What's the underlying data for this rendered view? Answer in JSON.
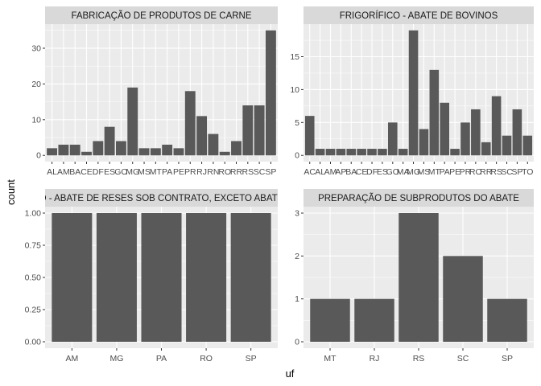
{
  "chart_data": {
    "type": "bar",
    "xlabel": "uf",
    "ylabel": "count",
    "colors": {
      "bar": "#595959",
      "panel": "#ebebeb",
      "strip": "#d9d9d9",
      "grid": "#ffffff"
    },
    "panels": [
      {
        "title": "FABRICAÇÃO DE PRODUTOS DE CARNE",
        "categories": [
          "AL",
          "AM",
          "BA",
          "CE",
          "DF",
          "ES",
          "GO",
          "MG",
          "MS",
          "MT",
          "PA",
          "PE",
          "PR",
          "RJ",
          "RN",
          "RO",
          "RR",
          "RS",
          "SC",
          "SP"
        ],
        "values": [
          2,
          3,
          3,
          1,
          4,
          8,
          4,
          19,
          2,
          2,
          3,
          2,
          18,
          11,
          6,
          1,
          4,
          14,
          14,
          35
        ],
        "ylim": [
          -1.75,
          36.75
        ],
        "yticks": [
          0,
          10,
          20,
          30
        ],
        "ytick_labels": [
          "0",
          "10",
          "20",
          "30"
        ]
      },
      {
        "title": "FRIGORÍFICO - ABATE DE BOVINOS",
        "categories": [
          "AC",
          "AL",
          "AM",
          "AP",
          "BA",
          "CE",
          "DF",
          "ES",
          "GO",
          "MA",
          "MG",
          "MS",
          "MT",
          "PA",
          "PE",
          "PR",
          "RO",
          "RR",
          "RS",
          "SC",
          "SP",
          "TO"
        ],
        "values": [
          6,
          1,
          1,
          1,
          1,
          1,
          1,
          1,
          5,
          1,
          19,
          4,
          13,
          8,
          1,
          5,
          7,
          2,
          9,
          3,
          7,
          3
        ],
        "ylim": [
          -0.95,
          19.95
        ],
        "yticks": [
          0,
          5,
          10,
          15
        ],
        "ytick_labels": [
          "0",
          "5",
          "10",
          "15"
        ]
      },
      {
        "title": "FRIGORÍFICO - ABATE DE RESES SOB CONTRATO, EXCETO ABATE DE SUÍNOS",
        "categories": [
          "AM",
          "MG",
          "PA",
          "RO",
          "SP"
        ],
        "values": [
          1,
          1,
          1,
          1,
          1
        ],
        "ylim": [
          -0.05,
          1.05
        ],
        "yticks": [
          0,
          0.25,
          0.5,
          0.75,
          1
        ],
        "ytick_labels": [
          "0.00",
          "0.25",
          "0.50",
          "0.75",
          "1.00"
        ]
      },
      {
        "title": "PREPARAÇÃO DE SUBPRODUTOS DO ABATE",
        "categories": [
          "MT",
          "RJ",
          "RS",
          "SC",
          "SP"
        ],
        "values": [
          1,
          1,
          3,
          2,
          1
        ],
        "ylim": [
          -0.15,
          3.15
        ],
        "yticks": [
          0,
          1,
          2,
          3
        ],
        "ytick_labels": [
          "0",
          "1",
          "2",
          "3"
        ]
      }
    ]
  }
}
